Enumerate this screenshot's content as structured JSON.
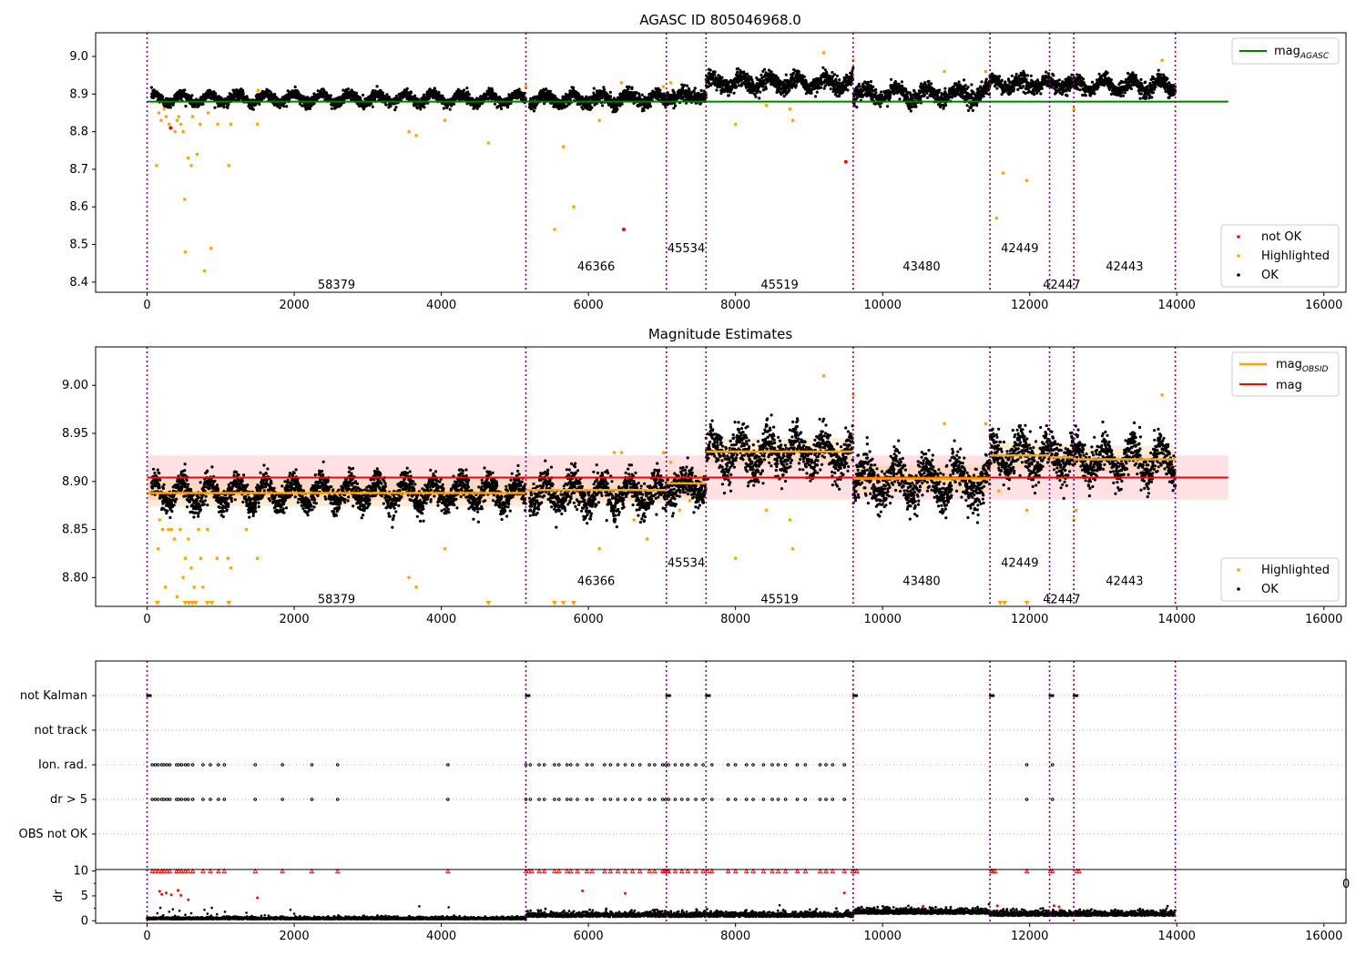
{
  "figure": {
    "panels": [
      {
        "id": "top",
        "title": "AGASC ID 805046968.0",
        "legend_top": {
          "label": "mag",
          "subscript": "AGASC"
        },
        "legend_bottom": [
          {
            "label": "not OK",
            "color": "#ff0000"
          },
          {
            "label": "Highlighted",
            "color": "#ffa500"
          },
          {
            "label": "OK",
            "color": "#000000"
          }
        ]
      },
      {
        "id": "middle",
        "title": "Magnitude Estimates",
        "legend_top": [
          {
            "label": "mag",
            "subscript": "OBSID",
            "color": "#ffa500"
          },
          {
            "label": "mag",
            "subscript": "",
            "color": "#ff0000"
          }
        ],
        "legend_bottom": [
          {
            "label": "Highlighted",
            "color": "#ffa500"
          },
          {
            "label": "OK",
            "color": "#000000"
          }
        ]
      },
      {
        "id": "flags",
        "title": "",
        "ylabel_dr": "dr",
        "stray_tick_label": "0"
      }
    ],
    "colors": {
      "green": "#008000",
      "orange": "#ffa500",
      "red": "#ff0000",
      "purple": "#800080",
      "band": "#ffd6d9",
      "black": "#000000"
    }
  },
  "chart_data": [
    {
      "type": "scatter",
      "panel": "top",
      "title": "AGASC ID 805046968.0",
      "xlim": [
        -700,
        16300
      ],
      "ylim": [
        8.373,
        9.063
      ],
      "xticks": [
        "0",
        "2000",
        "4000",
        "6000",
        "8000",
        "10000",
        "12000",
        "14000",
        "16000"
      ],
      "xtick_values": [
        0,
        2000,
        4000,
        6000,
        8000,
        10000,
        12000,
        14000,
        16000
      ],
      "yticks": [
        "8.4",
        "8.5",
        "8.6",
        "8.7",
        "8.8",
        "8.9",
        "9.0"
      ],
      "ytick_values": [
        8.4,
        8.5,
        8.6,
        8.7,
        8.8,
        8.9,
        9.0
      ],
      "mag_agasc": 8.88,
      "mag_agasc_x_range": [
        0,
        14700
      ],
      "obsid_boundaries": [
        0,
        5150,
        7060,
        7600,
        9600,
        11460,
        12270,
        12600,
        13980
      ],
      "obsid_labels": [
        {
          "text": "58379",
          "x": 2575,
          "y": 8.395
        },
        {
          "text": "46366",
          "x": 6105,
          "y": 8.443
        },
        {
          "text": "45534",
          "x": 7330,
          "y": 8.492
        },
        {
          "text": "45519",
          "x": 8600,
          "y": 8.395
        },
        {
          "text": "43480",
          "x": 10530,
          "y": 8.443
        },
        {
          "text": "42449",
          "x": 11865,
          "y": 8.492
        },
        {
          "text": "42447",
          "x": 12435,
          "y": 8.395
        },
        {
          "text": "42443",
          "x": 13290,
          "y": 8.443
        }
      ],
      "ok_segments": [
        {
          "x0": 60,
          "x1": 5150,
          "mean": 8.888,
          "amp": 0.012,
          "period": 380,
          "noise": 0.007
        },
        {
          "x0": 5200,
          "x1": 7060,
          "mean": 8.887,
          "amp": 0.012,
          "period": 380,
          "noise": 0.009
        },
        {
          "x0": 7060,
          "x1": 7600,
          "mean": 8.895,
          "amp": 0.008,
          "period": 380,
          "noise": 0.009
        },
        {
          "x0": 7600,
          "x1": 9600,
          "mean": 8.93,
          "amp": 0.014,
          "period": 380,
          "noise": 0.011
        },
        {
          "x0": 9600,
          "x1": 11460,
          "mean": 8.9,
          "amp": 0.016,
          "period": 420,
          "noise": 0.011
        },
        {
          "x0": 11460,
          "x1": 12270,
          "mean": 8.927,
          "amp": 0.012,
          "period": 380,
          "noise": 0.01
        },
        {
          "x0": 12270,
          "x1": 12600,
          "mean": 8.925,
          "amp": 0.01,
          "period": 380,
          "noise": 0.01
        },
        {
          "x0": 12600,
          "x1": 13980,
          "mean": 8.922,
          "amp": 0.014,
          "period": 380,
          "noise": 0.01
        }
      ],
      "highlighted_points": [
        [
          130,
          8.71
        ],
        [
          160,
          8.85
        ],
        [
          190,
          8.83
        ],
        [
          230,
          8.86
        ],
        [
          260,
          8.84
        ],
        [
          300,
          8.82
        ],
        [
          330,
          8.81
        ],
        [
          380,
          8.8
        ],
        [
          410,
          8.83
        ],
        [
          430,
          8.84
        ],
        [
          460,
          8.82
        ],
        [
          490,
          8.8
        ],
        [
          510,
          8.62
        ],
        [
          520,
          8.48
        ],
        [
          560,
          8.73
        ],
        [
          600,
          8.71
        ],
        [
          620,
          8.84
        ],
        [
          680,
          8.74
        ],
        [
          720,
          8.82
        ],
        [
          780,
          8.43
        ],
        [
          830,
          8.85
        ],
        [
          870,
          8.49
        ],
        [
          960,
          8.82
        ],
        [
          1110,
          8.71
        ],
        [
          1140,
          8.82
        ],
        [
          1500,
          8.82
        ],
        [
          1510,
          8.91
        ],
        [
          3560,
          8.8
        ],
        [
          3660,
          8.79
        ],
        [
          4050,
          8.83
        ],
        [
          4640,
          8.77
        ],
        [
          5150,
          8.92
        ],
        [
          5540,
          8.54
        ],
        [
          5660,
          8.76
        ],
        [
          5800,
          8.6
        ],
        [
          6150,
          8.83
        ],
        [
          6450,
          8.93
        ],
        [
          7020,
          8.92
        ],
        [
          7120,
          8.93
        ],
        [
          8000,
          8.82
        ],
        [
          8420,
          8.87
        ],
        [
          8740,
          8.86
        ],
        [
          8780,
          8.83
        ],
        [
          9200,
          9.01
        ],
        [
          9600,
          8.99
        ],
        [
          10840,
          8.96
        ],
        [
          11400,
          8.96
        ],
        [
          11550,
          8.57
        ],
        [
          11640,
          8.69
        ],
        [
          11960,
          8.67
        ],
        [
          12600,
          8.86
        ],
        [
          13800,
          8.99
        ]
      ],
      "not_ok_points": [
        [
          320,
          8.81
        ],
        [
          6480,
          8.54
        ],
        [
          9500,
          8.72
        ]
      ]
    },
    {
      "type": "scatter",
      "panel": "middle",
      "title": "Magnitude Estimates",
      "xlim": [
        -700,
        16300
      ],
      "ylim": [
        8.77,
        9.04
      ],
      "xticks": [
        "0",
        "2000",
        "4000",
        "6000",
        "8000",
        "10000",
        "12000",
        "14000",
        "16000"
      ],
      "xtick_values": [
        0,
        2000,
        4000,
        6000,
        8000,
        10000,
        12000,
        14000,
        16000
      ],
      "yticks": [
        "8.80",
        "8.85",
        "8.90",
        "8.95",
        "9.00"
      ],
      "ytick_values": [
        8.8,
        8.85,
        8.9,
        8.95,
        9.0
      ],
      "mag": 8.904,
      "mag_band": [
        8.881,
        8.927
      ],
      "mag_x_range": [
        0,
        14700
      ],
      "mag_obsid": [
        {
          "x0": 0,
          "x1": 5150,
          "value": 8.888
        },
        {
          "x0": 5150,
          "x1": 7060,
          "value": 8.891
        },
        {
          "x0": 7060,
          "x1": 7600,
          "value": 8.898
        },
        {
          "x0": 7600,
          "x1": 9600,
          "value": 8.931
        },
        {
          "x0": 9600,
          "x1": 11460,
          "value": 8.903
        },
        {
          "x0": 11460,
          "x1": 12270,
          "value": 8.927
        },
        {
          "x0": 12270,
          "x1": 12600,
          "value": 8.925
        },
        {
          "x0": 12600,
          "x1": 13980,
          "value": 8.923
        }
      ],
      "obsid_labels": [
        {
          "text": "58379",
          "x": 2575,
          "y": 8.778
        },
        {
          "text": "46366",
          "x": 6105,
          "y": 8.797
        },
        {
          "text": "45534",
          "x": 7330,
          "y": 8.816
        },
        {
          "text": "45519",
          "x": 8600,
          "y": 8.778
        },
        {
          "text": "43480",
          "x": 10530,
          "y": 8.797
        },
        {
          "text": "42449",
          "x": 11865,
          "y": 8.816
        },
        {
          "text": "42447",
          "x": 12435,
          "y": 8.778
        },
        {
          "text": "42443",
          "x": 13290,
          "y": 8.797
        }
      ],
      "highlighted_points": [
        [
          150,
          8.83
        ],
        [
          170,
          8.86
        ],
        [
          210,
          8.85
        ],
        [
          250,
          8.79
        ],
        [
          290,
          8.85
        ],
        [
          330,
          8.85
        ],
        [
          370,
          8.84
        ],
        [
          410,
          8.78
        ],
        [
          450,
          8.85
        ],
        [
          490,
          8.8
        ],
        [
          520,
          8.82
        ],
        [
          560,
          8.84
        ],
        [
          600,
          8.81
        ],
        [
          640,
          8.79
        ],
        [
          700,
          8.85
        ],
        [
          730,
          8.82
        ],
        [
          760,
          8.79
        ],
        [
          820,
          8.85
        ],
        [
          950,
          8.82
        ],
        [
          1100,
          8.82
        ],
        [
          1140,
          8.81
        ],
        [
          1350,
          8.85
        ],
        [
          1500,
          8.82
        ],
        [
          3560,
          8.8
        ],
        [
          3660,
          8.79
        ],
        [
          4050,
          8.83
        ],
        [
          6150,
          8.83
        ],
        [
          6350,
          8.93
        ],
        [
          6450,
          8.93
        ],
        [
          6620,
          8.86
        ],
        [
          6800,
          8.84
        ],
        [
          7020,
          8.93
        ],
        [
          7120,
          8.92
        ],
        [
          7240,
          8.87
        ],
        [
          7380,
          8.88
        ],
        [
          8000,
          8.82
        ],
        [
          8420,
          8.87
        ],
        [
          8740,
          8.86
        ],
        [
          8780,
          8.83
        ],
        [
          9200,
          9.01
        ],
        [
          9600,
          8.99
        ],
        [
          10840,
          8.96
        ],
        [
          11400,
          8.96
        ],
        [
          11580,
          8.89
        ],
        [
          11960,
          8.87
        ],
        [
          12600,
          8.86
        ],
        [
          12630,
          8.87
        ],
        [
          13800,
          8.99
        ]
      ],
      "below_range_markers": [
        140,
        520,
        570,
        620,
        660,
        820,
        880,
        1110,
        4640,
        5540,
        5660,
        5800,
        11600,
        11660,
        11960
      ]
    },
    {
      "type": "scatter",
      "panel": "flags",
      "xlim": [
        -700,
        16300
      ],
      "categories": [
        "not Kalman",
        "not track",
        "Ion. rad.",
        "dr > 5",
        "OBS not OK"
      ],
      "not_kalman_x": [
        0,
        5150,
        7060,
        7600,
        9600,
        11460,
        12270,
        12600
      ],
      "ion_rad_x": [
        70,
        110,
        150,
        200,
        230,
        270,
        310,
        400,
        430,
        470,
        520,
        560,
        620,
        760,
        860,
        970,
        1050,
        1470,
        1840,
        2240,
        2590,
        4090,
        5150,
        5210,
        5330,
        5400,
        5540,
        5600,
        5710,
        5760,
        5850,
        5980,
        6050,
        6220,
        6300,
        6400,
        6500,
        6600,
        6700,
        6830,
        6900,
        7010,
        7050,
        7090,
        7180,
        7270,
        7350,
        7460,
        7560,
        7680,
        7900,
        8000,
        8150,
        8240,
        8380,
        8500,
        8580,
        8680,
        8840,
        8950,
        9150,
        9230,
        9320,
        9480,
        11960,
        12310
      ],
      "dr_over_5_x": [
        70,
        110,
        150,
        200,
        230,
        270,
        310,
        400,
        430,
        470,
        520,
        560,
        620,
        760,
        860,
        970,
        1050,
        1470,
        1840,
        2240,
        2590,
        4090,
        5150,
        5210,
        5330,
        5400,
        5540,
        5600,
        5710,
        5760,
        5850,
        5980,
        6050,
        6220,
        6300,
        6400,
        6500,
        6600,
        6700,
        6830,
        6900,
        7010,
        7050,
        7090,
        7180,
        7270,
        7350,
        7460,
        7560,
        7680,
        7900,
        8000,
        8150,
        8240,
        8380,
        8500,
        8580,
        8680,
        8840,
        8950,
        9150,
        9230,
        9320,
        9480,
        11960,
        12310
      ]
    },
    {
      "type": "scatter",
      "panel": "dr",
      "xlim": [
        -700,
        16300
      ],
      "ylim": [
        -0.5,
        10.3
      ],
      "ylabel": "dr",
      "xticks": [
        "0",
        "2000",
        "4000",
        "6000",
        "8000",
        "10000",
        "12000",
        "14000",
        "16000"
      ],
      "xtick_values": [
        0,
        2000,
        4000,
        6000,
        8000,
        10000,
        12000,
        14000,
        16000
      ],
      "yticks": [
        "0",
        "5",
        "10"
      ],
      "ytick_values": [
        0,
        5,
        10
      ],
      "dr_segments": [
        {
          "x0": 0,
          "x1": 5150,
          "level": 0.3,
          "spread": 0.4
        },
        {
          "x0": 5150,
          "x1": 9600,
          "level": 0.8,
          "spread": 0.9
        },
        {
          "x0": 9600,
          "x1": 11460,
          "level": 1.4,
          "spread": 1.0
        },
        {
          "x0": 11460,
          "x1": 13980,
          "level": 1.0,
          "spread": 0.9
        }
      ],
      "clipped_at_10_x": [
        70,
        110,
        150,
        200,
        230,
        270,
        310,
        400,
        430,
        470,
        520,
        560,
        620,
        760,
        860,
        970,
        1050,
        1470,
        1840,
        2240,
        2590,
        4090,
        5150,
        5190,
        5230,
        5330,
        5400,
        5540,
        5600,
        5710,
        5760,
        5850,
        5980,
        6050,
        6220,
        6300,
        6400,
        6500,
        6600,
        6700,
        6830,
        6900,
        7010,
        7030,
        7050,
        7080,
        7090,
        7180,
        7270,
        7350,
        7460,
        7560,
        7620,
        7680,
        7900,
        8000,
        8150,
        8240,
        8380,
        8500,
        8580,
        8680,
        8840,
        8950,
        9150,
        9230,
        9320,
        9480,
        9590,
        9620,
        9650,
        11480,
        11500,
        11530,
        11960,
        12280,
        12310,
        12640,
        12670
      ],
      "red_points": [
        [
          170,
          5.9
        ],
        [
          200,
          5.3
        ],
        [
          260,
          5.6
        ],
        [
          330,
          5.2
        ],
        [
          420,
          6.1
        ],
        [
          460,
          5.1
        ],
        [
          560,
          4.2
        ],
        [
          1500,
          4.6
        ],
        [
          5920,
          6.0
        ],
        [
          6500,
          5.5
        ],
        [
          9480,
          5.6
        ],
        [
          10550,
          2.9
        ],
        [
          11560,
          3.0
        ],
        [
          12330,
          3.0
        ],
        [
          12400,
          2.8
        ]
      ],
      "black_scatter_early": [
        [
          140,
          1.5
        ],
        [
          180,
          2.6
        ],
        [
          220,
          1.1
        ],
        [
          300,
          1.8
        ],
        [
          350,
          2.3
        ],
        [
          380,
          1.0
        ],
        [
          440,
          2.0
        ],
        [
          520,
          1.2
        ],
        [
          600,
          1.5
        ],
        [
          780,
          2.2
        ],
        [
          820,
          1.4
        ],
        [
          880,
          2.6
        ],
        [
          950,
          1.3
        ],
        [
          1060,
          1.8
        ],
        [
          1180,
          0.9
        ],
        [
          1350,
          1.6
        ],
        [
          1600,
          1.1
        ],
        [
          1950,
          2.2
        ],
        [
          2000,
          1.4
        ],
        [
          2600,
          1.1
        ],
        [
          2950,
          1.0
        ],
        [
          3700,
          2.9
        ],
        [
          4100,
          2.7
        ],
        [
          6900,
          2.2
        ],
        [
          8600,
          3.1
        ],
        [
          8650,
          2.2
        ]
      ]
    }
  ]
}
